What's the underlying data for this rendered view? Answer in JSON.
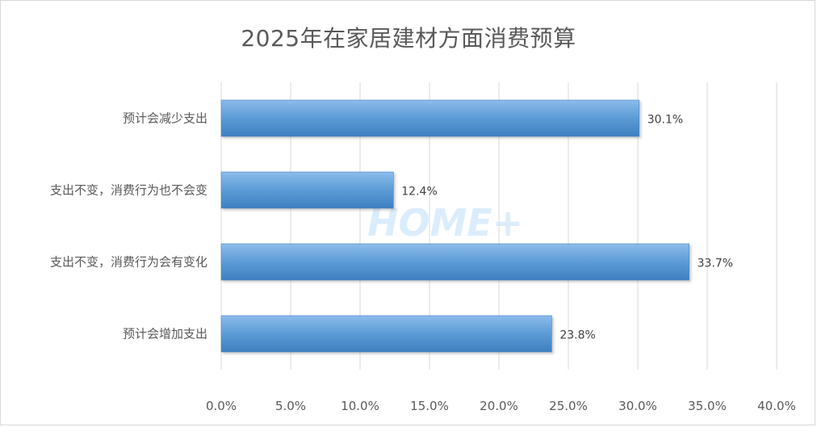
{
  "chart_data": {
    "type": "bar",
    "orientation": "horizontal",
    "title": "2025年在家居建材方面消费预算",
    "categories": [
      "预计会减少支出",
      "支出不变，消费行为也不会变",
      "支出不变，消费行为会有变化",
      "预计会增加支出"
    ],
    "values": [
      30.1,
      12.4,
      33.7,
      23.8
    ],
    "value_labels": [
      "30.1%",
      "12.4%",
      "33.7%",
      "23.8%"
    ],
    "xlim": [
      0,
      40
    ],
    "x_ticks": [
      "0.0%",
      "5.0%",
      "10.0%",
      "15.0%",
      "20.0%",
      "25.0%",
      "30.0%",
      "35.0%",
      "40.0%"
    ],
    "grid": true,
    "legend": "none",
    "bar_color": "#5b9bd5",
    "watermark": "HOME+"
  }
}
